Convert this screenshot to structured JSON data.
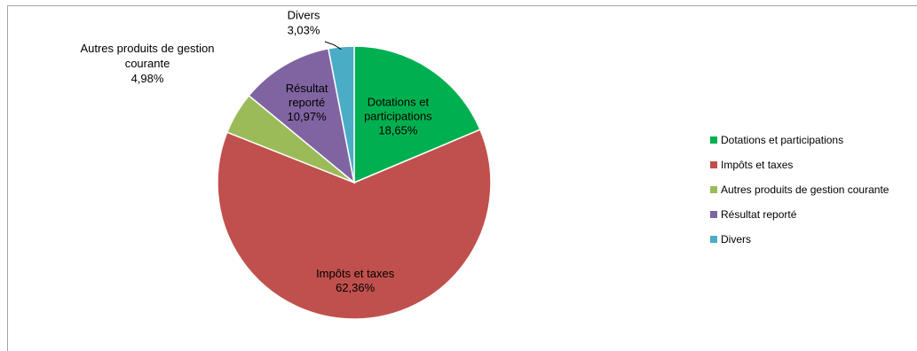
{
  "chart_data": {
    "type": "pie",
    "title": "",
    "slices": [
      {
        "name": "Dotations et participations",
        "value": 18.65,
        "label_lines": [
          "Dotations et",
          "participations"
        ],
        "value_label": "18,65%",
        "color": "#00b050"
      },
      {
        "name": "Impôts et taxes",
        "value": 62.36,
        "label_lines": [
          "Impôts et taxes"
        ],
        "value_label": "62,36%",
        "color": "#c0504d"
      },
      {
        "name": "Autres produits de gestion courante",
        "value": 4.98,
        "label_lines": [
          "Autres produits de gestion",
          "courante"
        ],
        "value_label": "4,98%",
        "color": "#9bbb59"
      },
      {
        "name": "Résultat reporté",
        "value": 10.97,
        "label_lines": [
          "Résultat",
          "reporté"
        ],
        "value_label": "10,97%",
        "color": "#8064a2"
      },
      {
        "name": "Divers",
        "value": 3.03,
        "label_lines": [
          "Divers"
        ],
        "value_label": "3,03%",
        "color": "#4bacc6"
      }
    ],
    "legend": {
      "position": "right",
      "entries": [
        "Dotations et participations",
        "Impôts et taxes",
        "Autres produits de gestion courante",
        "Résultat reporté",
        "Divers"
      ]
    }
  }
}
